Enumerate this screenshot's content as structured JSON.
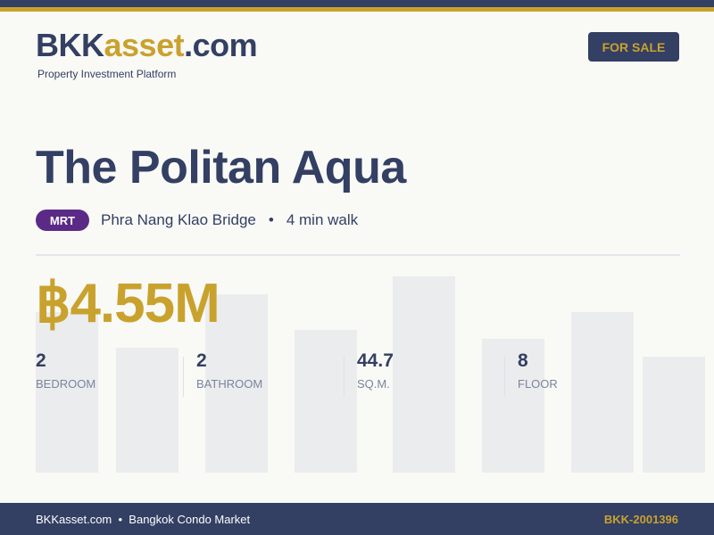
{
  "brand": {
    "prefix": "BKK",
    "accent": "asset",
    "suffix": ".com",
    "tagline": "Property Investment Platform"
  },
  "badge": {
    "label": "FOR SALE"
  },
  "listing": {
    "title": "The Politan Aqua",
    "transit_type": "MRT",
    "station": "Phra Nang Klao Bridge",
    "separator": "•",
    "walk": "4 min walk",
    "price": "฿4.55M"
  },
  "stats": [
    {
      "value": "2",
      "label": "BEDROOM"
    },
    {
      "value": "2",
      "label": "BATHROOM"
    },
    {
      "value": "44.7",
      "label": "SQ.M."
    },
    {
      "value": "8",
      "label": "FLOOR"
    }
  ],
  "footer": {
    "site": "BKKasset.com",
    "separator": "•",
    "market": "Bangkok Condo Market",
    "ref": "BKK-2001396"
  },
  "colors": {
    "navy": "#333f63",
    "gold": "#c9a22e",
    "mrt": "#5b2a86"
  }
}
